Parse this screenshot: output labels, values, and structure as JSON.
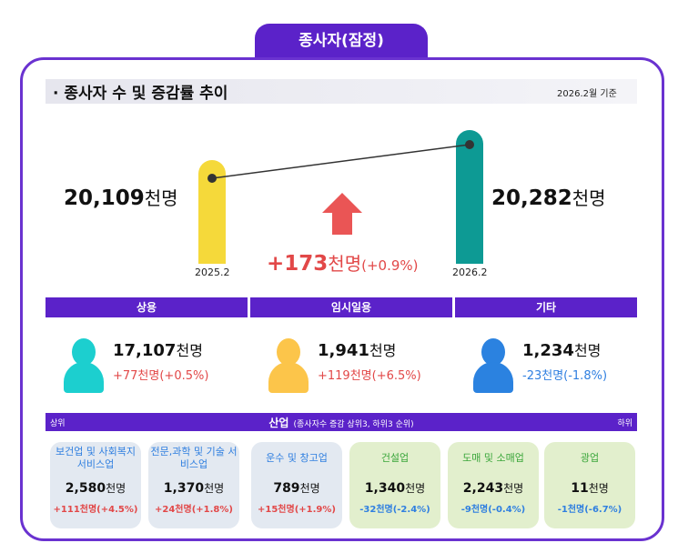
{
  "tab": "종사자(잠정)",
  "title": "· 종사자 수 및 증감률 추이",
  "basis": "2026.2월 기준",
  "trend": {
    "prev": {
      "value": "20,109",
      "unit": "천명",
      "label": "2025.2"
    },
    "curr": {
      "value": "20,282",
      "unit": "천명",
      "label": "2026.2"
    },
    "change": "+173",
    "change_unit": "천명",
    "change_pct": "(+0.9%)"
  },
  "colors": {
    "purple": "#5b22c9",
    "prev_bar": "#f5d93a",
    "curr_bar": "#0d9a94",
    "up": "#e24848",
    "down": "#2f7fe0"
  },
  "categories": [
    {
      "name": "상용",
      "value": "17,107",
      "unit": "천명",
      "change": "+77천명(+0.5%)",
      "dir": "up",
      "icon": "person-icon",
      "color": "#1ccfcf"
    },
    {
      "name": "임시일용",
      "value": "1,941",
      "unit": "천명",
      "change": "+119천명(+6.5%)",
      "dir": "up",
      "icon": "person-icon",
      "color": "#fcc54a"
    },
    {
      "name": "기타",
      "value": "1,234",
      "unit": "천명",
      "change": "-23천명(-1.8%)",
      "dir": "down",
      "icon": "person-icon",
      "color": "#2b82e0"
    }
  ],
  "industry": {
    "title": "산업",
    "subtitle": "(종사자수 증감 상위3, 하위3 순위)",
    "left": "상위",
    "right": "하위",
    "items": [
      {
        "name": "보건업 및 사회복지 서비스업",
        "value": "2,580",
        "unit": "천명",
        "change": "+111천명(+4.5%)",
        "dir": "up"
      },
      {
        "name": "전문,과학 및 기술 서비스업",
        "value": "1,370",
        "unit": "천명",
        "change": "+24천명(+1.8%)",
        "dir": "up"
      },
      {
        "name": "운수 및 창고업",
        "value": "789",
        "unit": "천명",
        "change": "+15천명(+1.9%)",
        "dir": "up"
      },
      {
        "name": "건설업",
        "value": "1,340",
        "unit": "천명",
        "change": "-32천명(-2.4%)",
        "dir": "down"
      },
      {
        "name": "도매 및 소매업",
        "value": "2,243",
        "unit": "천명",
        "change": "-9천명(-0.4%)",
        "dir": "down"
      },
      {
        "name": "광업",
        "value": "11",
        "unit": "천명",
        "change": "-1천명(-6.7%)",
        "dir": "down"
      }
    ]
  }
}
